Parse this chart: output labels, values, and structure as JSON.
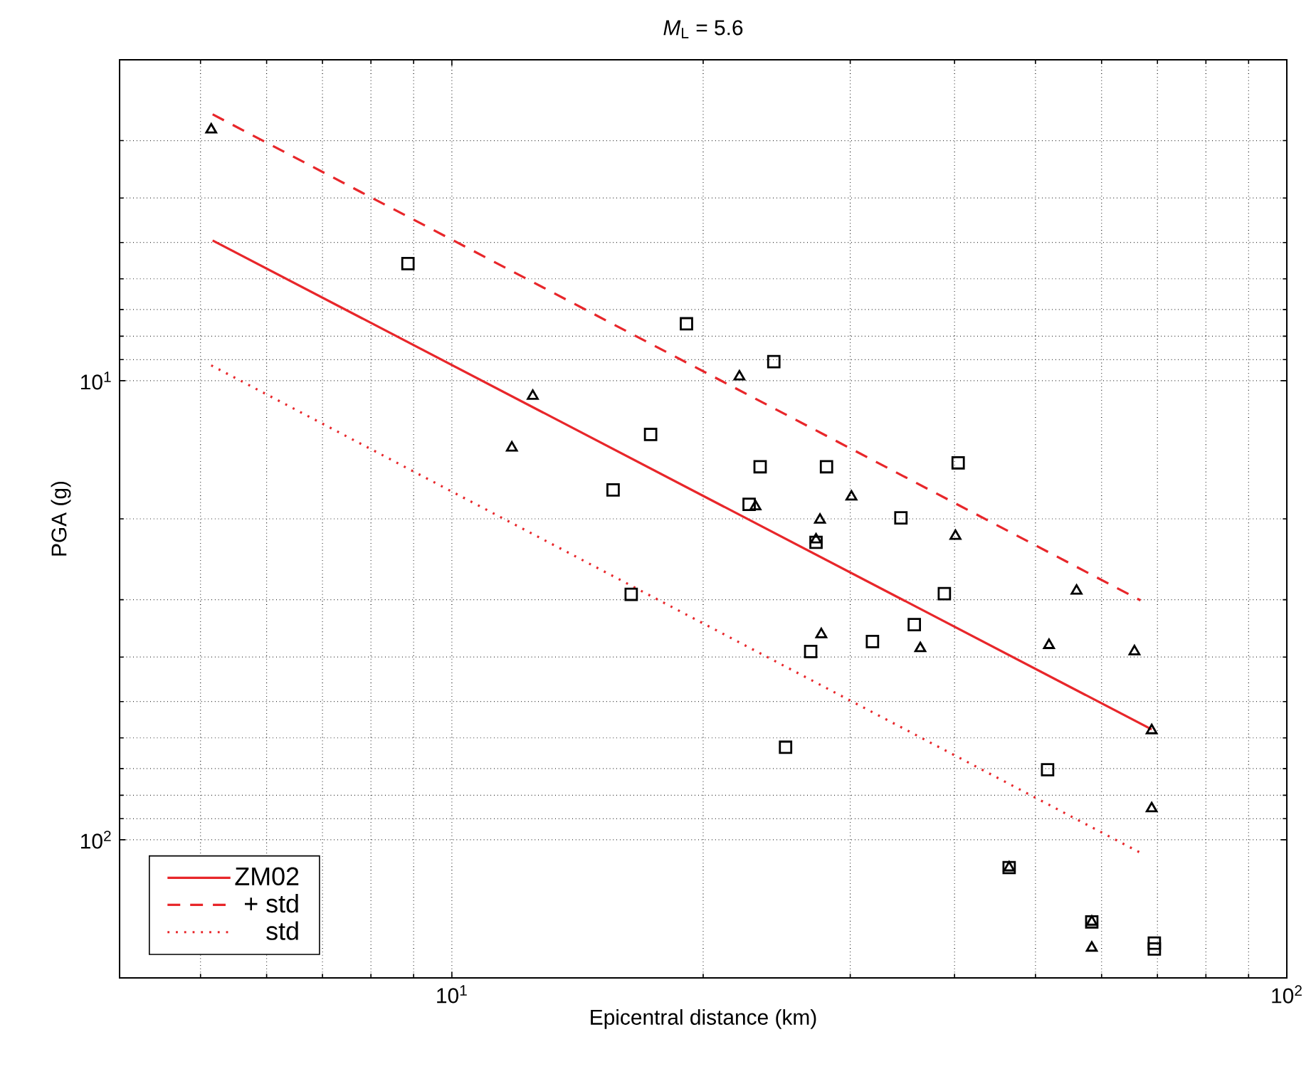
{
  "chart_data": {
    "type": "scatter",
    "title": "*M*$_{L}$ = 5.6",
    "xlabel": "Epicentral distance (km)",
    "ylabel": "PGA (g)",
    "log": "xy",
    "grid": true,
    "legend": "bottom left",
    "xlim": [
      4,
      100
    ],
    "ylim": [
      200,
      2
    ],
    "xticks": [
      {
        "value": 10,
        "label": "10$^{1}$"
      },
      {
        "value": 100,
        "label": "10$^{2}$"
      }
    ],
    "yticks": [
      {
        "value": 10,
        "label": "10$^{1}$"
      },
      {
        "value": 100,
        "label": "10$^{2}$"
      }
    ],
    "series": [
      {
        "name": "ZM02",
        "type": "line",
        "color": "#e8262a",
        "line_style": "solid",
        "x": [
          5.17,
          68.9
        ],
        "values": [
          4.95,
          57.5
        ]
      },
      {
        "name": "+ std",
        "type": "line",
        "color": "#e8262a",
        "line_style": "dashed",
        "x": [
          5.17,
          66.8
        ],
        "values": [
          2.63,
          30.1
        ]
      },
      {
        "name": "std",
        "type": "line",
        "color": "#e8262a",
        "line_style": "dotted",
        "x": [
          5.15,
          67.6
        ],
        "values": [
          9.26,
          108
        ]
      },
      {
        "marker": "square",
        "color": "#000000",
        "x": [
          8.86,
          19.1,
          24.3,
          17.3,
          15.6,
          23.4,
          28.1,
          40.4,
          22.7,
          34.5,
          27.3,
          16.4,
          38.9,
          35.8,
          31.9,
          26.9,
          25.1,
          51.7,
          46.5,
          58.4,
          69.4,
          69.4
        ],
        "values": [
          5.56,
          7.52,
          9.09,
          13.1,
          17.3,
          15.4,
          15.4,
          15.1,
          18.6,
          19.9,
          22.5,
          29.2,
          29.1,
          34.0,
          37.0,
          38.9,
          62.9,
          70.4,
          115,
          151,
          168,
          173
        ]
      },
      {
        "marker": "triangle",
        "color": "#000000",
        "x": [
          5.15,
          12.5,
          11.8,
          22.1,
          30.1,
          23.1,
          27.6,
          40.1,
          27.3,
          27.7,
          36.4,
          56.0,
          51.9,
          65.7,
          68.9,
          68.9,
          46.5,
          58.4,
          58.4
        ],
        "values": [
          2.84,
          10.8,
          14.0,
          9.8,
          17.9,
          18.8,
          20.1,
          21.8,
          22.2,
          35.7,
          38.3,
          28.7,
          37.7,
          38.9,
          57.8,
          85.5,
          115,
          151,
          172
        ]
      }
    ]
  }
}
